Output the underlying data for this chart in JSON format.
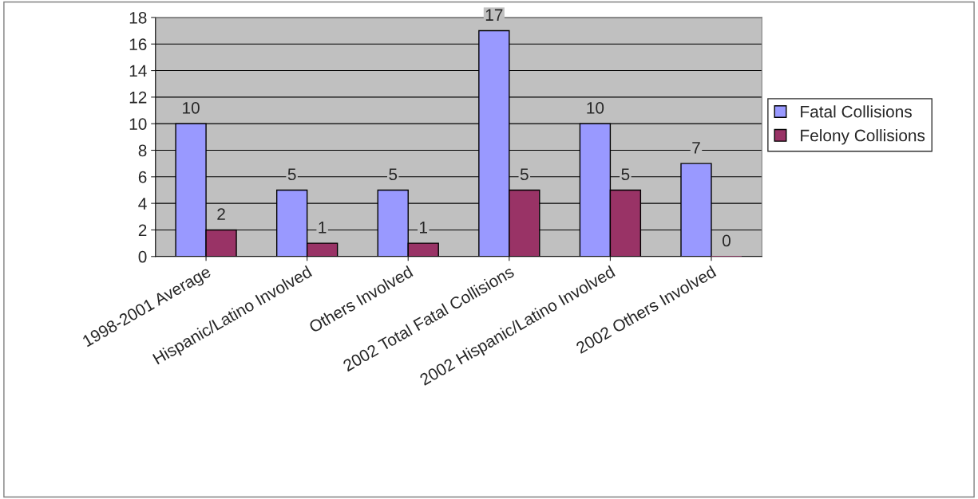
{
  "chart_data": {
    "type": "bar",
    "categories": [
      "1998-2001 Average",
      "Hispanic/Latino Involved",
      "Others Involved",
      "2002 Total Fatal Collisions",
      "2002 Hispanic/Latino Involved",
      "2002 Others Involved"
    ],
    "series": [
      {
        "name": "Fatal Collisions",
        "color": "#9999ff",
        "values": [
          10,
          5,
          5,
          17,
          10,
          7
        ]
      },
      {
        "name": "Felony Collisions",
        "color": "#993366",
        "values": [
          2,
          1,
          1,
          5,
          5,
          0
        ]
      }
    ],
    "ylim": [
      0,
      18
    ],
    "yticks": [
      0,
      2,
      4,
      6,
      8,
      10,
      12,
      14,
      16,
      18
    ],
    "grid": "y",
    "legend": "right",
    "data_labels": true
  }
}
